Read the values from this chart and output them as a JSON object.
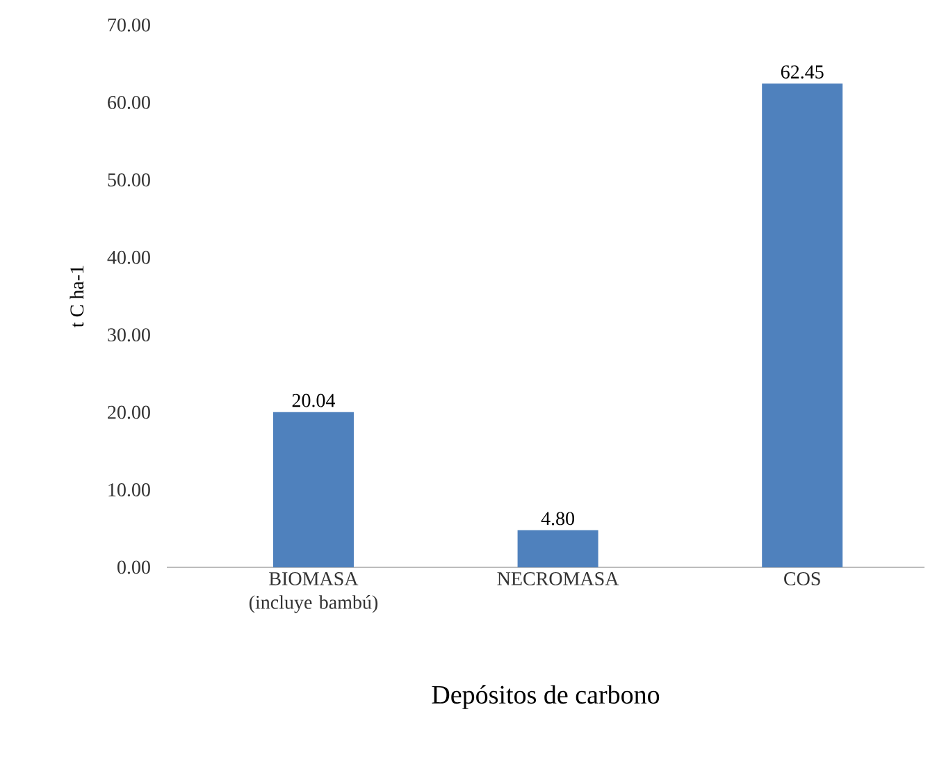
{
  "chart_data": {
    "type": "bar",
    "xlabel": "Depósitos de carbono",
    "ylabel": "t C ha-1",
    "categories": [
      "BIOMASA (incluye bambú)",
      "NECROMASA",
      "COS"
    ],
    "values": [
      20.04,
      4.8,
      62.45
    ],
    "value_labels": [
      "20.04",
      "4.80",
      "62.45"
    ],
    "color": "#4f81bd",
    "ylim": [
      0,
      70
    ],
    "yticks": [
      {
        "value": 0,
        "label": "0.00"
      },
      {
        "value": 10,
        "label": "10.00"
      },
      {
        "value": 20,
        "label": "20.00"
      },
      {
        "value": 30,
        "label": "30.00"
      },
      {
        "value": 40,
        "label": "40.00"
      },
      {
        "value": 50,
        "label": "50.00"
      },
      {
        "value": 60,
        "label": "60.00"
      },
      {
        "value": 70,
        "label": "70.00"
      }
    ],
    "grid": false
  }
}
